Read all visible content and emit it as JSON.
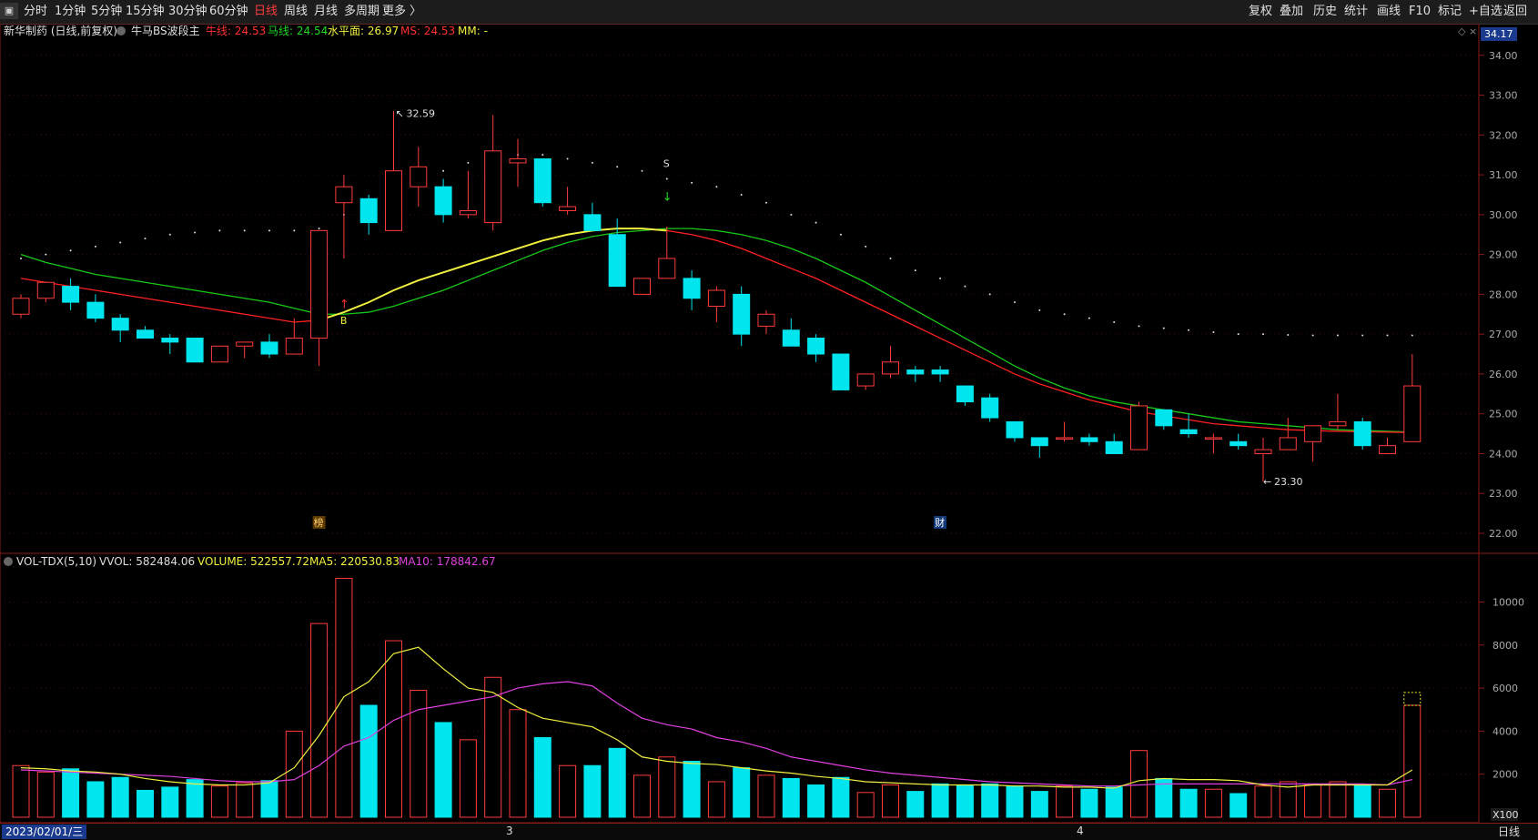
{
  "toolbar": {
    "system_icon": "sys-menu-icon",
    "periods": [
      "分时",
      "1分钟",
      "5分钟",
      "15分钟",
      "30分钟",
      "60分钟",
      "日线",
      "周线",
      "月线",
      "多周期",
      "更多 〉"
    ],
    "active_period": "日线",
    "right_buttons": [
      "复权",
      "叠加",
      "历史",
      "统计",
      "画线",
      "F10",
      "标记",
      "+自选",
      "返回"
    ]
  },
  "legend": {
    "stock": "新华制药 (日线,前复权)",
    "indicator": "牛马BS波段主",
    "items": [
      {
        "label": "牛线: 24.53",
        "color": "#ff3030"
      },
      {
        "label": "马线: 24.54",
        "color": "#1fd81f"
      },
      {
        "label": "水平面: 26.97",
        "color": "#f0f040"
      },
      {
        "label": "MS: 24.53",
        "color": "#ff3030"
      },
      {
        "label": "MM: -",
        "color": "#f0f040"
      }
    ]
  },
  "price_axis": {
    "current": "34.17",
    "ticks": [
      "34.00",
      "33.00",
      "32.00",
      "31.00",
      "30.00",
      "29.00",
      "28.00",
      "27.00",
      "26.00",
      "25.00",
      "24.00",
      "23.00",
      "22.00"
    ]
  },
  "annotations": {
    "high": "32.59",
    "low": "23.30",
    "buy": "B",
    "sell": "S",
    "mark_bang": "榜",
    "mark_cai": "财"
  },
  "volume_legend": {
    "indicator": "VOL-TDX(5,10)",
    "items": [
      {
        "label": "VVOL: 582484.06",
        "color": "#dddddd"
      },
      {
        "label": "VOLUME: 522557.72",
        "color": "#f0f040"
      },
      {
        "label": "MA5: 220530.83",
        "color": "#f0f040"
      },
      {
        "label": "MA10: 178842.67",
        "color": "#e040e0"
      }
    ]
  },
  "volume_axis": {
    "ticks": [
      "10000",
      "8000",
      "6000",
      "4000",
      "2000"
    ],
    "unit": "X100"
  },
  "bottom": {
    "date": "2023/02/01/三",
    "month_marks": [
      "3",
      "4"
    ],
    "period_label": "日线"
  },
  "colors": {
    "up": "#ff3b3b",
    "down": "#00e5ee",
    "ma_red": "#ff2020",
    "ma_green": "#18c818",
    "ma_yellow": "#f0f040",
    "ma_magenta": "#e040e0",
    "grid": "#5a1010"
  },
  "chart_data": {
    "type": "candlestick",
    "price_ylim": [
      22,
      34.2
    ],
    "volume_ylim": [
      0,
      11500
    ],
    "candles": [
      {
        "o": 27.5,
        "h": 28.0,
        "l": 27.4,
        "c": 27.9,
        "v": 2400
      },
      {
        "o": 27.9,
        "h": 28.3,
        "l": 27.8,
        "c": 28.3,
        "v": 2100
      },
      {
        "o": 28.2,
        "h": 28.4,
        "l": 27.6,
        "c": 27.8,
        "v": 2250
      },
      {
        "o": 27.8,
        "h": 28.0,
        "l": 27.3,
        "c": 27.4,
        "v": 1650
      },
      {
        "o": 27.4,
        "h": 27.5,
        "l": 26.8,
        "c": 27.1,
        "v": 1850
      },
      {
        "o": 27.1,
        "h": 27.2,
        "l": 26.9,
        "c": 26.9,
        "v": 1250
      },
      {
        "o": 26.9,
        "h": 27.0,
        "l": 26.5,
        "c": 26.8,
        "v": 1400
      },
      {
        "o": 26.9,
        "h": 26.9,
        "l": 26.3,
        "c": 26.3,
        "v": 1750
      },
      {
        "o": 26.3,
        "h": 26.7,
        "l": 26.3,
        "c": 26.7,
        "v": 1450
      },
      {
        "o": 26.7,
        "h": 26.8,
        "l": 26.4,
        "c": 26.8,
        "v": 1600
      },
      {
        "o": 26.8,
        "h": 27.0,
        "l": 26.4,
        "c": 26.5,
        "v": 1700
      },
      {
        "o": 26.5,
        "h": 27.4,
        "l": 26.5,
        "c": 26.9,
        "v": 4000
      },
      {
        "o": 26.9,
        "h": 29.6,
        "l": 26.2,
        "c": 29.6,
        "v": 9000
      },
      {
        "o": 30.3,
        "h": 31.0,
        "l": 28.9,
        "c": 30.7,
        "v": 11100
      },
      {
        "o": 30.4,
        "h": 30.5,
        "l": 29.5,
        "c": 29.8,
        "v": 5200
      },
      {
        "o": 29.6,
        "h": 32.6,
        "l": 29.6,
        "c": 31.1,
        "v": 8200
      },
      {
        "o": 30.7,
        "h": 31.7,
        "l": 30.2,
        "c": 31.2,
        "v": 5900
      },
      {
        "o": 30.7,
        "h": 30.9,
        "l": 29.8,
        "c": 30.0,
        "v": 4400
      },
      {
        "o": 30.0,
        "h": 31.1,
        "l": 29.9,
        "c": 30.1,
        "v": 3600
      },
      {
        "o": 29.8,
        "h": 32.5,
        "l": 29.6,
        "c": 31.6,
        "v": 6500
      },
      {
        "o": 31.3,
        "h": 31.9,
        "l": 30.7,
        "c": 31.4,
        "v": 5000
      },
      {
        "o": 31.4,
        "h": 31.4,
        "l": 30.2,
        "c": 30.3,
        "v": 3700
      },
      {
        "o": 30.1,
        "h": 30.7,
        "l": 30.0,
        "c": 30.2,
        "v": 2400
      },
      {
        "o": 30.0,
        "h": 30.3,
        "l": 29.6,
        "c": 29.6,
        "v": 2400
      },
      {
        "o": 29.5,
        "h": 29.9,
        "l": 28.2,
        "c": 28.2,
        "v": 3200
      },
      {
        "o": 28.0,
        "h": 28.4,
        "l": 28.0,
        "c": 28.4,
        "v": 1950
      },
      {
        "o": 28.4,
        "h": 29.7,
        "l": 28.4,
        "c": 28.9,
        "v": 2800
      },
      {
        "o": 28.4,
        "h": 28.6,
        "l": 27.6,
        "c": 27.9,
        "v": 2600
      },
      {
        "o": 27.7,
        "h": 28.2,
        "l": 27.3,
        "c": 28.1,
        "v": 1650
      },
      {
        "o": 28.0,
        "h": 28.2,
        "l": 26.7,
        "c": 27.0,
        "v": 2300
      },
      {
        "o": 27.2,
        "h": 27.6,
        "l": 27.0,
        "c": 27.5,
        "v": 1950
      },
      {
        "o": 27.1,
        "h": 27.4,
        "l": 26.7,
        "c": 26.7,
        "v": 1800
      },
      {
        "o": 26.9,
        "h": 27.0,
        "l": 26.3,
        "c": 26.5,
        "v": 1500
      },
      {
        "o": 26.5,
        "h": 26.5,
        "l": 25.6,
        "c": 25.6,
        "v": 1850
      },
      {
        "o": 25.7,
        "h": 26.0,
        "l": 25.6,
        "c": 26.0,
        "v": 1150
      },
      {
        "o": 26.0,
        "h": 26.7,
        "l": 25.9,
        "c": 26.3,
        "v": 1500
      },
      {
        "o": 26.1,
        "h": 26.2,
        "l": 25.8,
        "c": 26.0,
        "v": 1200
      },
      {
        "o": 26.1,
        "h": 26.2,
        "l": 25.8,
        "c": 26.0,
        "v": 1550
      },
      {
        "o": 25.7,
        "h": 25.7,
        "l": 25.2,
        "c": 25.3,
        "v": 1500
      },
      {
        "o": 25.4,
        "h": 25.5,
        "l": 24.8,
        "c": 24.9,
        "v": 1550
      },
      {
        "o": 24.8,
        "h": 24.8,
        "l": 24.3,
        "c": 24.4,
        "v": 1450
      },
      {
        "o": 24.4,
        "h": 24.4,
        "l": 23.9,
        "c": 24.2,
        "v": 1200
      },
      {
        "o": 24.4,
        "h": 24.8,
        "l": 24.3,
        "c": 24.4,
        "v": 1450
      },
      {
        "o": 24.4,
        "h": 24.5,
        "l": 24.2,
        "c": 24.3,
        "v": 1300
      },
      {
        "o": 24.3,
        "h": 24.5,
        "l": 24.0,
        "c": 24.0,
        "v": 1400
      },
      {
        "o": 24.1,
        "h": 25.3,
        "l": 24.1,
        "c": 25.2,
        "v": 3100
      },
      {
        "o": 25.1,
        "h": 25.1,
        "l": 24.6,
        "c": 24.7,
        "v": 1800
      },
      {
        "o": 24.6,
        "h": 25.0,
        "l": 24.4,
        "c": 24.5,
        "v": 1300
      },
      {
        "o": 24.4,
        "h": 24.5,
        "l": 24.0,
        "c": 24.4,
        "v": 1300
      },
      {
        "o": 24.3,
        "h": 24.5,
        "l": 24.1,
        "c": 24.2,
        "v": 1100
      },
      {
        "o": 24.0,
        "h": 24.4,
        "l": 23.3,
        "c": 24.1,
        "v": 1450
      },
      {
        "o": 24.1,
        "h": 24.9,
        "l": 24.1,
        "c": 24.4,
        "v": 1650
      },
      {
        "o": 24.3,
        "h": 24.7,
        "l": 23.8,
        "c": 24.7,
        "v": 1500
      },
      {
        "o": 24.7,
        "h": 25.5,
        "l": 24.6,
        "c": 24.8,
        "v": 1650
      },
      {
        "o": 24.8,
        "h": 24.9,
        "l": 24.1,
        "c": 24.2,
        "v": 1500
      },
      {
        "o": 24.0,
        "h": 24.4,
        "l": 24.0,
        "c": 24.2,
        "v": 1300
      },
      {
        "o": 24.3,
        "h": 26.5,
        "l": 24.3,
        "c": 25.7,
        "v": 5200
      }
    ],
    "niu_line": [
      28.4,
      28.3,
      28.2,
      28.1,
      28.0,
      27.9,
      27.8,
      27.7,
      27.6,
      27.5,
      27.4,
      27.3,
      27.35,
      27.55,
      27.8,
      28.1,
      28.35,
      28.55,
      28.75,
      28.95,
      29.15,
      29.35,
      29.5,
      29.6,
      29.65,
      29.65,
      29.6,
      29.5,
      29.35,
      29.15,
      28.9,
      28.65,
      28.4,
      28.1,
      27.8,
      27.5,
      27.2,
      26.9,
      26.6,
      26.3,
      26.0,
      25.75,
      25.55,
      25.35,
      25.2,
      25.05,
      24.95,
      24.85,
      24.75,
      24.7,
      24.65,
      24.6,
      24.58,
      24.56,
      24.55,
      24.54,
      24.53
    ],
    "ma_line": [
      29.0,
      28.8,
      28.65,
      28.5,
      28.4,
      28.3,
      28.2,
      28.1,
      28.0,
      27.9,
      27.8,
      27.65,
      27.5,
      27.5,
      27.55,
      27.7,
      27.9,
      28.1,
      28.35,
      28.6,
      28.85,
      29.1,
      29.3,
      29.45,
      29.55,
      29.6,
      29.65,
      29.65,
      29.6,
      29.5,
      29.35,
      29.15,
      28.9,
      28.6,
      28.3,
      27.95,
      27.6,
      27.25,
      26.9,
      26.55,
      26.2,
      25.9,
      25.65,
      25.45,
      25.3,
      25.2,
      25.1,
      25.0,
      24.9,
      24.8,
      24.75,
      24.7,
      24.65,
      24.6,
      24.58,
      24.56,
      24.54
    ],
    "level_dots": [
      28.9,
      29.0,
      29.1,
      29.2,
      29.3,
      29.4,
      29.5,
      29.55,
      29.6,
      29.6,
      29.6,
      29.6,
      29.65,
      30.0,
      30.3,
      30.6,
      30.9,
      31.1,
      31.3,
      31.4,
      31.5,
      31.5,
      31.4,
      31.3,
      31.2,
      31.1,
      30.9,
      30.8,
      30.7,
      30.5,
      30.3,
      30.0,
      29.8,
      29.5,
      29.2,
      28.9,
      28.6,
      28.4,
      28.2,
      28.0,
      27.8,
      27.6,
      27.5,
      27.4,
      27.3,
      27.2,
      27.15,
      27.1,
      27.05,
      27.0,
      27.0,
      26.98,
      26.97,
      26.97,
      26.97,
      26.97,
      26.97
    ],
    "vol_ma5": [
      2300,
      2250,
      2150,
      2100,
      2000,
      1800,
      1650,
      1550,
      1500,
      1500,
      1600,
      2300,
      3800,
      5600,
      6300,
      7600,
      7900,
      6900,
      6000,
      5800,
      5100,
      4600,
      4400,
      4200,
      3600,
      2800,
      2600,
      2500,
      2450,
      2300,
      2150,
      2050,
      1900,
      1800,
      1650,
      1600,
      1550,
      1500,
      1500,
      1500,
      1450,
      1450,
      1400,
      1400,
      1350,
      1700,
      1800,
      1750,
      1750,
      1700,
      1500,
      1400,
      1500,
      1500,
      1500,
      1500,
      2200
    ],
    "vol_ma10": [
      2200,
      2150,
      2100,
      2050,
      2000,
      1950,
      1900,
      1800,
      1700,
      1650,
      1650,
      1750,
      2400,
      3300,
      3700,
      4500,
      5000,
      5200,
      5400,
      5600,
      6000,
      6200,
      6300,
      6100,
      5300,
      4600,
      4300,
      4100,
      3700,
      3500,
      3200,
      2800,
      2600,
      2400,
      2200,
      2050,
      1950,
      1850,
      1750,
      1650,
      1600,
      1550,
      1500,
      1450,
      1450,
      1500,
      1550,
      1550,
      1550,
      1550,
      1550,
      1550,
      1550,
      1550,
      1550,
      1500,
      1750
    ]
  }
}
